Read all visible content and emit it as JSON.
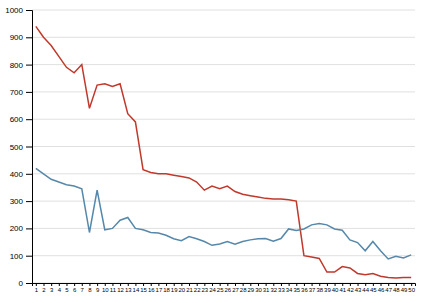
{
  "chart_data": {
    "type": "line",
    "x": [
      1,
      2,
      3,
      4,
      5,
      6,
      7,
      8,
      9,
      10,
      11,
      12,
      13,
      14,
      15,
      16,
      17,
      18,
      19,
      20,
      21,
      22,
      23,
      24,
      25,
      26,
      27,
      28,
      29,
      30,
      31,
      32,
      33,
      34,
      35,
      36,
      37,
      38,
      39,
      40,
      41,
      42,
      43,
      44,
      45,
      46,
      47,
      48,
      49,
      50
    ],
    "series": [
      {
        "color": "#c0392b",
        "values": [
          940,
          900,
          870,
          830,
          790,
          770,
          800,
          640,
          725,
          730,
          720,
          730,
          620,
          590,
          415,
          405,
          400,
          400,
          395,
          390,
          385,
          370,
          340,
          355,
          345,
          355,
          335,
          325,
          320,
          315,
          310,
          308,
          308,
          305,
          300,
          100,
          95,
          90,
          40,
          40,
          60,
          55,
          35,
          30,
          35,
          25,
          20,
          18,
          20,
          20
        ]
      },
      {
        "color": "#5588aa",
        "values": [
          420,
          400,
          380,
          370,
          360,
          355,
          345,
          185,
          340,
          195,
          200,
          230,
          240,
          200,
          195,
          185,
          183,
          175,
          162,
          155,
          170,
          162,
          152,
          138,
          143,
          152,
          142,
          152,
          158,
          162,
          163,
          153,
          163,
          198,
          192,
          198,
          213,
          218,
          213,
          198,
          193,
          158,
          148,
          118,
          152,
          118,
          88,
          98,
          92,
          103
        ]
      }
    ],
    "xlim": [
      0.5,
      50.5
    ],
    "xticks": [
      1,
      2,
      3,
      4,
      5,
      6,
      7,
      8,
      9,
      10,
      11,
      12,
      13,
      14,
      15,
      16,
      17,
      18,
      19,
      20,
      21,
      22,
      23,
      24,
      25,
      26,
      27,
      28,
      29,
      30,
      31,
      32,
      33,
      34,
      35,
      36,
      37,
      38,
      39,
      40,
      41,
      42,
      43,
      44,
      45,
      46,
      47,
      48,
      49,
      50
    ],
    "ylim": [
      0,
      1000
    ],
    "yticks": [
      0,
      100,
      200,
      300,
      400,
      500,
      600,
      700,
      800,
      900,
      1000
    ],
    "grid": "y"
  }
}
